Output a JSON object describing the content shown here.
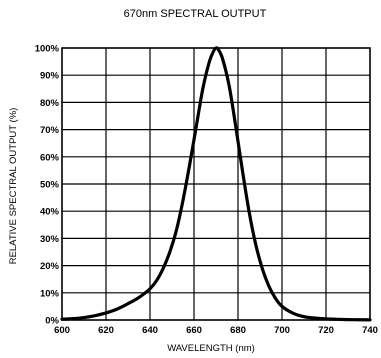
{
  "chart_data": {
    "type": "line",
    "title": "670nm SPECTRAL OUTPUT",
    "xlabel": "WAVELENGTH (nm)",
    "ylabel": "RELATIVE SPECTRAL OUTPUT (%)",
    "xlim": [
      600,
      740
    ],
    "ylim": [
      0,
      100
    ],
    "grid": true,
    "x_ticks": [
      "600",
      "620",
      "640",
      "660",
      "680",
      "700",
      "720",
      "740"
    ],
    "y_ticks": [
      "0%",
      "10%",
      "20%",
      "30%",
      "40%",
      "50%",
      "60%",
      "70%",
      "80%",
      "90%",
      "100%"
    ],
    "series": [
      {
        "color": "#000000",
        "x": [
          600,
          605,
          610,
          615,
          620,
          625,
          630,
          635,
          640,
          643,
          646,
          649,
          652,
          655,
          658,
          661,
          664,
          667,
          669,
          670,
          671,
          673,
          676,
          679,
          682,
          685,
          688,
          691,
          694,
          697,
          700,
          705,
          710,
          715,
          720,
          725,
          730,
          735,
          740
        ],
        "y": [
          0.3,
          0.5,
          0.9,
          1.6,
          2.6,
          4.0,
          6.0,
          8.3,
          11.5,
          14.5,
          19,
          25,
          33,
          44,
          57,
          71,
          85,
          95,
          99,
          100,
          99.5,
          96,
          86,
          71,
          55,
          40,
          28,
          19,
          12.5,
          8,
          5,
          2.5,
          1.2,
          0.7,
          0.4,
          0.25,
          0.15,
          0.1,
          0.05
        ]
      }
    ]
  }
}
